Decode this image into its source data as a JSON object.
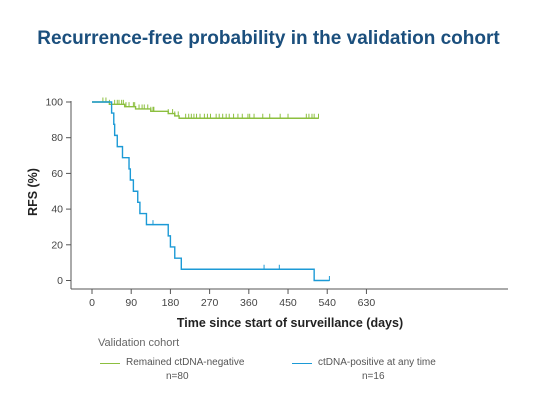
{
  "chart_data": {
    "type": "line",
    "title": "Recurrence-free probability in the validation cohort",
    "xlabel": "Time since start of surveillance (days)",
    "ylabel": "RFS (%)",
    "xlim": [
      -15,
      690
    ],
    "ylim": [
      0,
      100
    ],
    "xticks": [
      0,
      90,
      180,
      270,
      360,
      450,
      540,
      630
    ],
    "yticks": [
      0,
      20,
      40,
      60,
      80,
      100
    ],
    "grid": false,
    "legend": {
      "title": "Validation cohort",
      "placement": "bottom"
    },
    "series": [
      {
        "name": "Remained ctDNA-negative",
        "n_label": "n=80",
        "color": "#8cbf3f",
        "steps": [
          [
            0,
            100
          ],
          [
            40,
            98.7
          ],
          [
            75,
            97.4
          ],
          [
            100,
            96.1
          ],
          [
            135,
            94.8
          ],
          [
            175,
            93.5
          ],
          [
            190,
            92.2
          ],
          [
            200,
            90.9
          ],
          [
            520,
            90.9
          ]
        ],
        "censor": [
          25,
          32,
          40,
          52,
          58,
          62,
          68,
          72,
          78,
          85,
          95,
          98,
          108,
          115,
          120,
          128,
          135,
          140,
          142,
          175,
          185,
          190,
          198,
          215,
          222,
          228,
          234,
          240,
          248,
          258,
          265,
          272,
          285,
          292,
          300,
          308,
          315,
          325,
          335,
          345,
          358,
          362,
          372,
          392,
          408,
          432,
          450,
          492,
          498,
          505,
          510,
          520
        ]
      },
      {
        "name": "ctDNA-positive at any time",
        "n_label": "n=16",
        "color": "#1c9ad6",
        "steps": [
          [
            0,
            100
          ],
          [
            45,
            93.8
          ],
          [
            50,
            87.5
          ],
          [
            52,
            81.3
          ],
          [
            58,
            75
          ],
          [
            70,
            68.8
          ],
          [
            85,
            62.5
          ],
          [
            88,
            56.3
          ],
          [
            95,
            50
          ],
          [
            105,
            43.8
          ],
          [
            110,
            37.5
          ],
          [
            125,
            31.3
          ],
          [
            175,
            25
          ],
          [
            180,
            18.8
          ],
          [
            190,
            12.5
          ],
          [
            205,
            6.3
          ],
          [
            280,
            6.3
          ],
          [
            300,
            6.3
          ],
          [
            300,
            6.3
          ],
          [
            510,
            6.3
          ],
          [
            510,
            0
          ],
          [
            545,
            0
          ]
        ],
        "censor": [
          110,
          140,
          395,
          430,
          545
        ]
      }
    ]
  }
}
